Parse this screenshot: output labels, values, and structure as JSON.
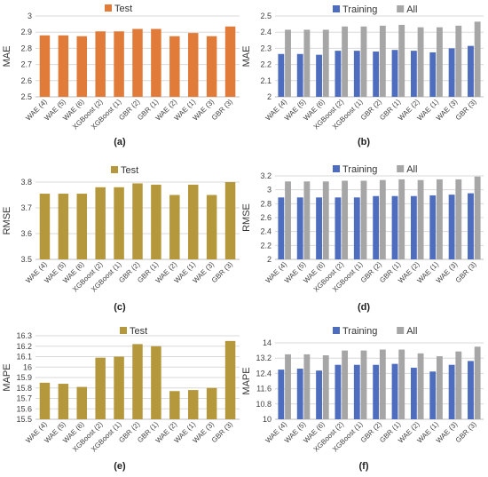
{
  "chart_data": [
    {
      "type": "bar",
      "caption": "(a)",
      "categories": [
        "WAE (4)",
        "WAE (5)",
        "WAE (6)",
        "XGBoost (2)",
        "XGBoost (1)",
        "GBR (2)",
        "GBR (1)",
        "WAE (2)",
        "WAE (1)",
        "WAE (3)",
        "GBR (3)"
      ],
      "series": [
        {
          "name": "Test",
          "values": [
            2.88,
            2.88,
            2.875,
            2.905,
            2.905,
            2.92,
            2.92,
            2.875,
            2.895,
            2.875,
            2.935
          ]
        }
      ],
      "ylabel": "MAE",
      "ylim": [
        2.5,
        3.0
      ],
      "yticks": [
        "2.5",
        "2.6",
        "2.7",
        "2.8",
        "2.9",
        "3"
      ],
      "legend": "top",
      "grid": true,
      "colors": [
        "#E07B39"
      ]
    },
    {
      "type": "bar",
      "caption": "(b)",
      "categories": [
        "WAE (4)",
        "WAE (5)",
        "WAE (6)",
        "XGBoost (2)",
        "XGBoost (1)",
        "GBR (2)",
        "GBR (1)",
        "WAE (2)",
        "WAE (1)",
        "WAE (3)",
        "GBR (3)"
      ],
      "series": [
        {
          "name": "Training",
          "values": [
            2.265,
            2.265,
            2.26,
            2.285,
            2.285,
            2.28,
            2.29,
            2.285,
            2.275,
            2.3,
            2.315
          ]
        },
        {
          "name": "All",
          "values": [
            2.415,
            2.415,
            2.415,
            2.435,
            2.435,
            2.44,
            2.445,
            2.43,
            2.43,
            2.44,
            2.465
          ]
        }
      ],
      "ylabel": "MAE",
      "ylim": [
        2.0,
        2.5
      ],
      "yticks": [
        "2",
        "2.1",
        "2.2",
        "2.3",
        "2.4",
        "2.5"
      ],
      "legend": "top",
      "grid": true,
      "colors": [
        "#4F6DBE",
        "#A6A6A6"
      ]
    },
    {
      "type": "bar",
      "caption": "(c)",
      "categories": [
        "WAE (4)",
        "WAE (5)",
        "WAE (6)",
        "XGBoost (2)",
        "XGBoost (1)",
        "GBR (2)",
        "GBR (1)",
        "WAE (2)",
        "WAE (1)",
        "WAE (3)",
        "GBR (3)"
      ],
      "series": [
        {
          "name": "Test",
          "values": [
            3.755,
            3.755,
            3.755,
            3.78,
            3.78,
            3.795,
            3.79,
            3.75,
            3.79,
            3.75,
            3.8
          ]
        }
      ],
      "ylabel": "RMSE",
      "ylim": [
        3.5,
        3.8
      ],
      "yticks": [
        "3.5",
        "3.6",
        "3.7",
        "3.8"
      ],
      "legend": "top",
      "grid": true,
      "colors": [
        "#B5973C"
      ]
    },
    {
      "type": "bar",
      "caption": "(d)",
      "categories": [
        "WAE (4)",
        "WAE (5)",
        "WAE (6)",
        "XGBoost (2)",
        "XGBoost (1)",
        "GBR (2)",
        "GBR (1)",
        "WAE (2)",
        "WAE (1)",
        "WAE (3)",
        "GBR (3)"
      ],
      "series": [
        {
          "name": "Training",
          "values": [
            2.89,
            2.89,
            2.89,
            2.89,
            2.89,
            2.91,
            2.91,
            2.91,
            2.92,
            2.93,
            2.95
          ]
        },
        {
          "name": "All",
          "values": [
            3.12,
            3.12,
            3.12,
            3.13,
            3.13,
            3.14,
            3.15,
            3.14,
            3.15,
            3.15,
            3.19
          ]
        }
      ],
      "ylabel": "RMSE",
      "ylim": [
        2.0,
        3.2
      ],
      "yticks": [
        "2",
        "2.2",
        "2.4",
        "2.6",
        "2.8",
        "3",
        "3.2"
      ],
      "legend": "top",
      "grid": true,
      "colors": [
        "#4F6DBE",
        "#A6A6A6"
      ]
    },
    {
      "type": "bar",
      "caption": "(e)",
      "categories": [
        "WAE (4)",
        "WAE (5)",
        "WAE (6)",
        "XGBoost (2)",
        "XGBoost (1)",
        "GBR (2)",
        "GBR (1)",
        "WAE (2)",
        "WAE (1)",
        "WAE (3)",
        "GBR (3)"
      ],
      "series": [
        {
          "name": "Test",
          "values": [
            15.85,
            15.84,
            15.81,
            16.09,
            16.1,
            16.22,
            16.2,
            15.77,
            15.78,
            15.8,
            16.25
          ]
        }
      ],
      "ylabel": "MAPE",
      "ylim": [
        15.5,
        16.3
      ],
      "yticks": [
        "15.5",
        "15.6",
        "15.7",
        "15.8",
        "15.9",
        "16",
        "16.1",
        "16.2",
        "16.3"
      ],
      "legend": "top",
      "grid": true,
      "colors": [
        "#B5973C"
      ]
    },
    {
      "type": "bar",
      "caption": "(f)",
      "categories": [
        "WAE (4)",
        "WAE (5)",
        "WAE (6)",
        "XGBoost (2)",
        "XGBoost (1)",
        "GBR (2)",
        "GBR (1)",
        "WAE (2)",
        "WAE (1)",
        "WAE (3)",
        "GBR (3)"
      ],
      "series": [
        {
          "name": "Training",
          "values": [
            12.6,
            12.65,
            12.55,
            12.85,
            12.85,
            12.85,
            12.9,
            12.7,
            12.5,
            12.85,
            13.05
          ]
        },
        {
          "name": "All",
          "values": [
            13.4,
            13.4,
            13.35,
            13.6,
            13.6,
            13.65,
            13.65,
            13.45,
            13.3,
            13.55,
            13.8
          ]
        }
      ],
      "ylabel": "MAPE",
      "ylim": [
        10.0,
        14.0
      ],
      "yticks": [
        "10",
        "10.8",
        "11.6",
        "12.4",
        "13.2",
        "14"
      ],
      "legend": "top",
      "grid": true,
      "colors": [
        "#4F6DBE",
        "#A6A6A6"
      ]
    }
  ]
}
